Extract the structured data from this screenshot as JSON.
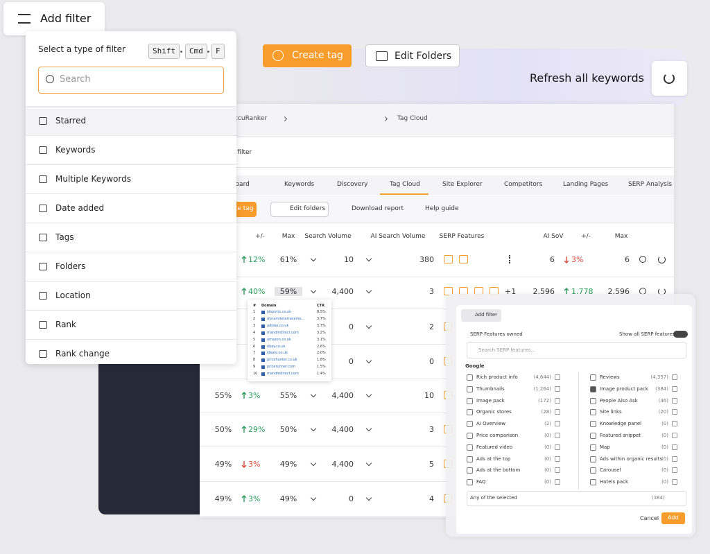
{
  "add_filter": {
    "button": "Add filter",
    "title": "Select a type of filter",
    "shortcut": [
      "Shift",
      "Cmd",
      "F"
    ],
    "search_placeholder": "Search",
    "items": [
      "Starred",
      "Keywords",
      "Multiple Keywords",
      "Date added",
      "Tags",
      "Folders",
      "Location",
      "Rank",
      "Rank change"
    ]
  },
  "top_bar": {
    "create_tag": "Create tag",
    "edit_folders": "Edit Folders",
    "refresh": "Refresh all keywords"
  },
  "breadcrumb": [
    "AccuRanker",
    "Tag Cloud"
  ],
  "filter_link": "Add filter",
  "tabs": [
    "Dashboard",
    "Keywords",
    "Discovery",
    "Tag Cloud",
    "Site Explorer",
    "Competitors",
    "Landing Pages",
    "SERP Analysis"
  ],
  "active_tab": 3,
  "toolbar": [
    "Create tag",
    "Edit folders",
    "Download report",
    "Help guide"
  ],
  "table": {
    "headers": [
      "+/-",
      "Max",
      "Search Volume",
      "AI Search Volume",
      "SERP Features",
      "AI SoV",
      "+/-",
      "Max"
    ],
    "rows": [
      {
        "change": "12%",
        "trend": "up",
        "max": "61%",
        "sv": "10",
        "aisv": "380",
        "aisov": "6",
        "aichange": "3%",
        "aitrend": "down",
        "aimax": "6"
      },
      {
        "change": "40%",
        "trend": "up",
        "max": "59%",
        "sv": "4,400",
        "aisv": "3",
        "extra": "+1",
        "aisov": "2,596",
        "aichange": "1,778",
        "aitrend": "up",
        "aimax": "2,596"
      },
      {
        "sv": "0",
        "aisv": "2"
      },
      {
        "sv": "0",
        "aisv": "0"
      },
      {
        "first": "55%",
        "change": "3%",
        "trend": "up",
        "max": "55%",
        "sv": "4,400",
        "aisv": "10"
      },
      {
        "first": "50%",
        "change": "29%",
        "trend": "up",
        "max": "50%",
        "sv": "4,400",
        "aisv": "3"
      },
      {
        "first": "49%",
        "change": "3%",
        "trend": "down",
        "max": "49%",
        "sv": "4,400",
        "aisv": "5"
      },
      {
        "first": "49%",
        "change": "3%",
        "trend": "up",
        "max": "49%",
        "sv": "0",
        "aisv": "4"
      }
    ]
  },
  "tooltip": {
    "headers": [
      "#",
      "Domain",
      "CTR"
    ],
    "rows": [
      [
        "1",
        "jdsports.co.uk",
        "8.5%"
      ],
      [
        "2",
        "dynamiteterraceme...",
        "3.7%"
      ],
      [
        "3",
        "adidas.co.uk",
        "3.7%"
      ],
      [
        "4",
        "mandmdirect.com",
        "3.2%"
      ],
      [
        "5",
        "amazon.co.uk",
        "3.1%"
      ],
      [
        "6",
        "ebay.co.uk",
        "2.6%"
      ],
      [
        "7",
        "idealo.co.uk",
        "2.0%"
      ],
      [
        "8",
        "pricehunter.co.uk",
        "1.8%"
      ],
      [
        "9",
        "pricerunner.com",
        "1.5%"
      ],
      [
        "10",
        "mandmdirect.com",
        "1.4%"
      ]
    ]
  },
  "serp_panel": {
    "add_filter": "Add filter",
    "title": "SERP Features owned",
    "toggle": "Show all SERP features",
    "search_placeholder": "Search SERP features...",
    "group": "Google",
    "left": [
      [
        "Rich product info",
        "(4,644)"
      ],
      [
        "Thumbnails",
        "(1,264)"
      ],
      [
        "Image pack",
        "(172)"
      ],
      [
        "Organic stores",
        "(28)"
      ],
      [
        "AI Overview",
        "(2)"
      ],
      [
        "Price comparison",
        "(0)"
      ],
      [
        "Featured video",
        "(0)"
      ],
      [
        "Ads at the top",
        "(0)"
      ],
      [
        "Ads at the bottom",
        "(0)"
      ],
      [
        "FAQ",
        "(0)"
      ]
    ],
    "right": [
      [
        "Reviews",
        "(4,357)"
      ],
      [
        "Image product pack",
        "(384)"
      ],
      [
        "People Also Ask",
        "(46)"
      ],
      [
        "Site links",
        "(20)"
      ],
      [
        "Knowledge panel",
        "(0)"
      ],
      [
        "Featured snippet",
        "(0)"
      ],
      [
        "Map",
        "(0)"
      ],
      [
        "Ads within organic results",
        "(0)"
      ],
      [
        "Carousel",
        "(0)"
      ],
      [
        "Hotels pack",
        "(0)"
      ]
    ],
    "checked": "Image product pack",
    "select": "Any of the selected",
    "select_count": "(384)",
    "cancel": "Cancel",
    "add": "Add"
  }
}
